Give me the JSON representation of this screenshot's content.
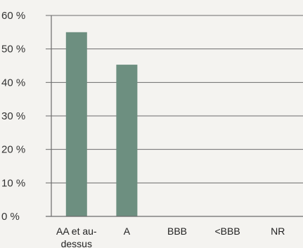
{
  "chart_data": {
    "type": "bar",
    "categories": [
      "AA et au-dessus",
      "A",
      "BBB",
      "<BBB",
      "NR"
    ],
    "category_lines": [
      [
        "AA et au-",
        "dessus"
      ],
      [
        "A"
      ],
      [
        "BBB"
      ],
      [
        "<BBB"
      ],
      [
        "NR"
      ]
    ],
    "values": [
      55,
      45.3,
      0,
      0,
      0
    ],
    "ylim": [
      0,
      60
    ],
    "yticks": [
      0,
      10,
      20,
      30,
      40,
      50,
      60
    ],
    "ytick_labels": [
      "0 %",
      "10 %",
      "20 %",
      "30 %",
      "40 %",
      "50 %",
      "60 %"
    ],
    "title": "",
    "xlabel": "",
    "ylabel": "",
    "grid": true,
    "colors": {
      "bar": "#6d8f80",
      "grid": "#6b6b6b",
      "axis": "#6b6b6b",
      "background": "#f4f3f0"
    }
  }
}
